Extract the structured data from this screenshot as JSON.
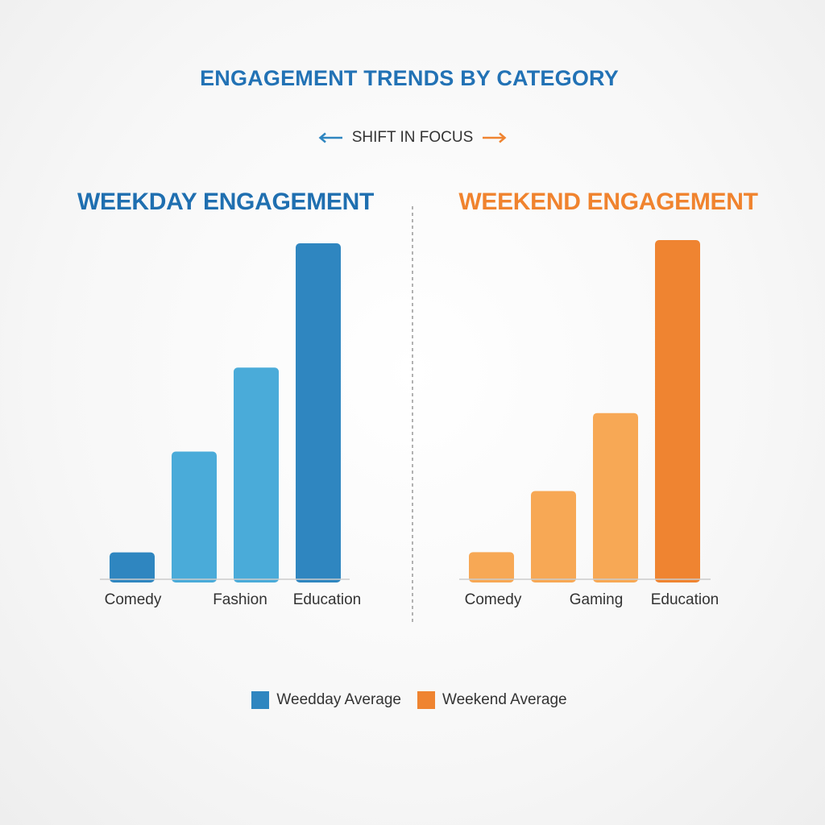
{
  "title": "ENGAGEMENT TRENDS BY CATEGORY",
  "shift_label": "SHIFT IN FOCUS",
  "colors": {
    "weekday_light": "#4aabd9",
    "weekday_dark": "#2f86c0",
    "weekend_light": "#f7a855",
    "weekend_dark": "#ef8431",
    "axis": "#cccccc",
    "divider": "#999999"
  },
  "chart_data": [
    {
      "type": "bar",
      "title": "WEEKDAY ENGAGEMENT",
      "categories": [
        "Comedy",
        "",
        "Fashion",
        "Education"
      ],
      "values": [
        8,
        38,
        63,
        100
      ],
      "bar_colors": [
        "#2f86c0",
        "#4aabd9",
        "#4aabd9",
        "#2f86c0"
      ],
      "ylim": [
        0,
        100
      ],
      "grid": false
    },
    {
      "type": "bar",
      "title": "WEEKEND ENGAGEMENT",
      "categories": [
        "Comedy",
        "",
        "Gaming",
        "Education"
      ],
      "values": [
        8,
        26,
        49,
        100
      ],
      "bar_colors": [
        "#f7a855",
        "#f7a855",
        "#f7a855",
        "#ef8431"
      ],
      "ylim": [
        0,
        100
      ],
      "grid": false
    }
  ],
  "legend": [
    {
      "label": "Weedday Average",
      "color": "#2f86c0"
    },
    {
      "label": "Weekend Average",
      "color": "#ef8431"
    }
  ]
}
